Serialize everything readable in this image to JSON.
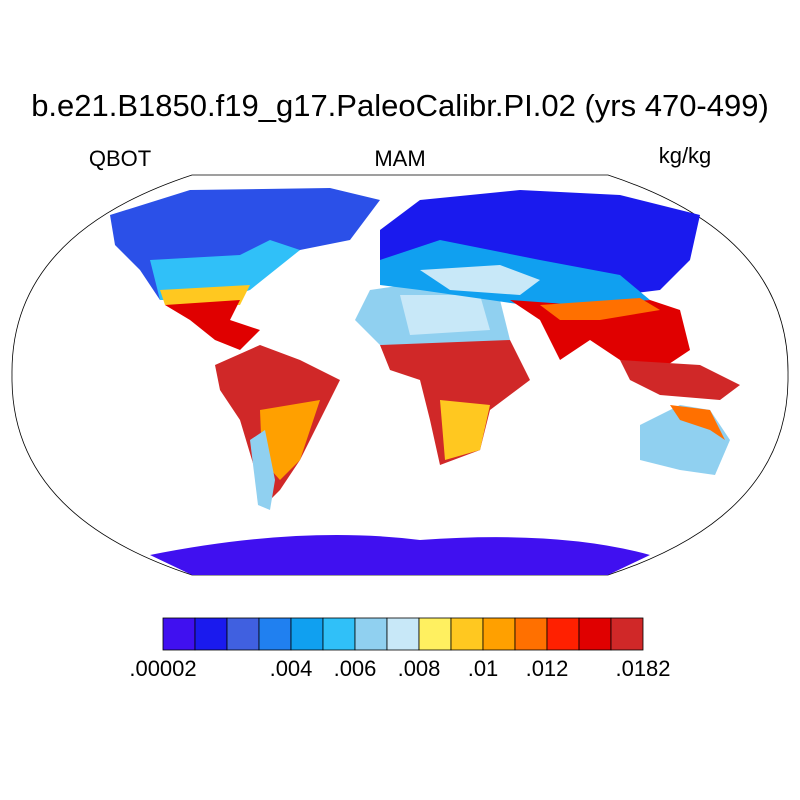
{
  "header": {
    "title": "b.e21.B1850.f19_g17.PaleoCalibr.PI.02 (yrs 470-499)",
    "left": "QBOT",
    "center": "MAM",
    "right": "kg/kg"
  },
  "colorbar": {
    "colors": [
      "#4010f0",
      "#1a1aee",
      "#4060e0",
      "#2080f0",
      "#10a0f0",
      "#30c0f8",
      "#90d0f0",
      "#c8e8f8",
      "#fff060",
      "#ffc820",
      "#ffa000",
      "#ff7000",
      "#ff2000",
      "#e00000",
      "#d02828"
    ],
    "labels": [
      {
        "value": 2e-05,
        "label": ".00002"
      },
      {
        "value": 0.004,
        "label": ".004"
      },
      {
        "value": 0.006,
        "label": ".006"
      },
      {
        "value": 0.008,
        "label": ".008"
      },
      {
        "value": 0.01,
        "label": ".01"
      },
      {
        "value": 0.012,
        "label": ".012"
      },
      {
        "value": 0.0182,
        "label": ".0182"
      }
    ]
  }
}
